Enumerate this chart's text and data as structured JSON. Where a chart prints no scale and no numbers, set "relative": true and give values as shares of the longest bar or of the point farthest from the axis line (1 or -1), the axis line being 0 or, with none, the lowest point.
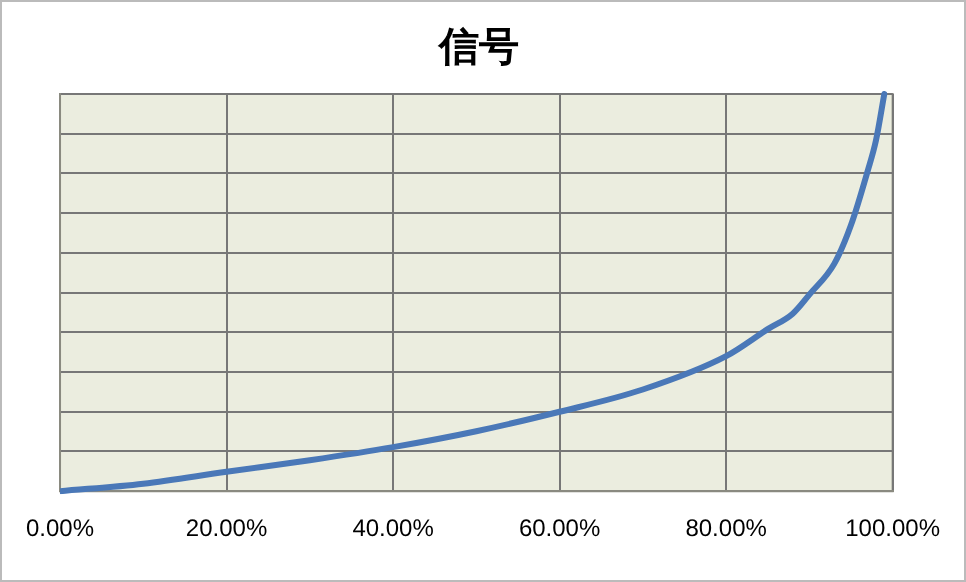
{
  "chart_data": {
    "type": "line",
    "title": "信号",
    "relative": true,
    "x": [
      0,
      10,
      20,
      30,
      40,
      50,
      60,
      70,
      80,
      85,
      88,
      90,
      93,
      95,
      97,
      98,
      99
    ],
    "series": [
      {
        "color": "#4a78b8",
        "values": [
          0,
          0.019,
          0.049,
          0.078,
          0.111,
          0.151,
          0.2,
          0.256,
          0.34,
          0.408,
          0.447,
          0.495,
          0.573,
          0.67,
          0.806,
          0.883,
          1
        ]
      }
    ],
    "xlim": [
      0,
      100
    ],
    "xticks": [
      {
        "value": 0,
        "label": "0.00%"
      },
      {
        "value": 20,
        "label": "20.00%"
      },
      {
        "value": 40,
        "label": "40.00%"
      },
      {
        "value": 60,
        "label": "60.00%"
      },
      {
        "value": 80,
        "label": "80.00%"
      },
      {
        "value": 100,
        "label": "100.00%"
      }
    ],
    "grid": true,
    "marker": "none",
    "line_style": "solid"
  }
}
